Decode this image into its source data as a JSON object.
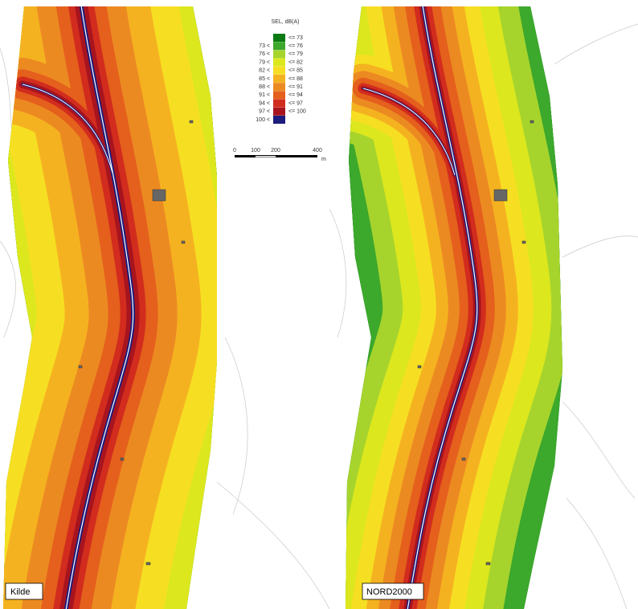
{
  "legend": {
    "title": "SEL, dB(A)",
    "rows": [
      {
        "upper": "<= 73",
        "color": "#0b7a12"
      },
      {
        "lower": "73 <",
        "upper": "<= 76",
        "color": "#3ca82c"
      },
      {
        "lower": "76 <",
        "upper": "<= 79",
        "color": "#a6d42c"
      },
      {
        "lower": "79 <",
        "upper": "<= 82",
        "color": "#dce71e"
      },
      {
        "lower": "82 <",
        "upper": "<= 85",
        "color": "#f6df22"
      },
      {
        "lower": "85 <",
        "upper": "<= 88",
        "color": "#f5b220"
      },
      {
        "lower": "88 <",
        "upper": "<= 91",
        "color": "#ec8a22"
      },
      {
        "lower": "91 <",
        "upper": "<= 94",
        "color": "#e4601c"
      },
      {
        "lower": "94 <",
        "upper": "<= 97",
        "color": "#d22c1e"
      },
      {
        "lower": "97 <",
        "upper": "<= 100",
        "color": "#a8141e"
      },
      {
        "lower": "100 <",
        "color": "#1c1c7c"
      }
    ]
  },
  "scale": {
    "ticks": [
      "0",
      "100",
      "200",
      "400"
    ],
    "unit": "m"
  },
  "panels": [
    {
      "label": "Kilde"
    },
    {
      "label": "NORD2000"
    }
  ]
}
